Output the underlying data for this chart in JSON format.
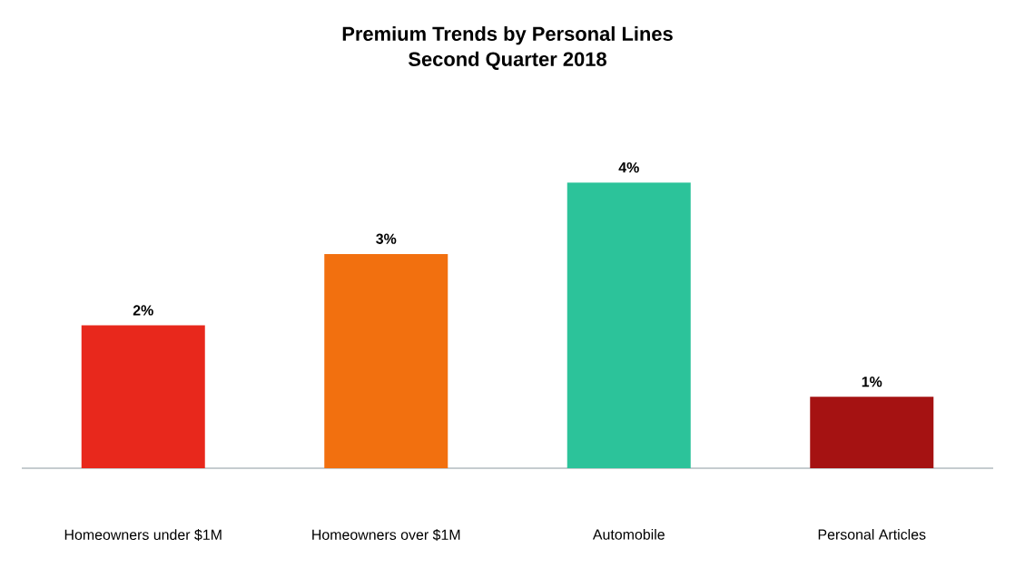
{
  "chart_data": {
    "type": "bar",
    "title": "Premium Trends by Personal Lines",
    "subtitle": "Second Quarter 2018",
    "categories": [
      "Homeowners under $1M",
      "Homeowners over $1M",
      "Automobile",
      "Personal Articles"
    ],
    "values": [
      2,
      3,
      4,
      1
    ],
    "value_labels": [
      "2%",
      "3%",
      "4%",
      "1%"
    ],
    "colors": [
      "#e8281c",
      "#f2700f",
      "#2cc39a",
      "#a51212"
    ]
  }
}
